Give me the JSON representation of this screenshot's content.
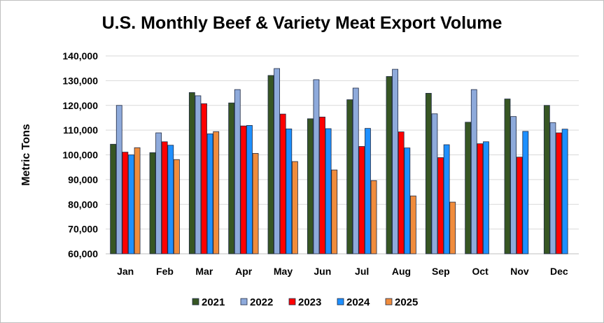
{
  "chart_data": {
    "type": "bar",
    "title": "U.S. Monthly Beef & Variety Meat Export Volume",
    "xlabel": "",
    "ylabel": "Metric Tons",
    "ylim": [
      60000,
      140000
    ],
    "yticks": [
      60000,
      70000,
      80000,
      90000,
      100000,
      110000,
      120000,
      130000,
      140000
    ],
    "ytick_labels": [
      "60,000",
      "70,000",
      "80,000",
      "90,000",
      "100,000",
      "110,000",
      "120,000",
      "130,000",
      "140,000"
    ],
    "grid": true,
    "legend_position": "bottom",
    "categories": [
      "Jan",
      "Feb",
      "Mar",
      "Apr",
      "May",
      "Jun",
      "Jul",
      "Aug",
      "Sep",
      "Oct",
      "Nov",
      "Dec"
    ],
    "series": [
      {
        "name": "2021",
        "color": "#375623",
        "values": [
          104300,
          100900,
          125200,
          121000,
          132100,
          114600,
          122300,
          131700,
          124900,
          113200,
          122600,
          120000
        ]
      },
      {
        "name": "2022",
        "color": "#8eaadb",
        "values": [
          120000,
          108900,
          123900,
          126400,
          134900,
          130400,
          127000,
          134600,
          116600,
          126400,
          115500,
          113000
        ]
      },
      {
        "name": "2023",
        "color": "#ff0000",
        "values": [
          101100,
          105300,
          120700,
          111700,
          116500,
          115300,
          103400,
          109300,
          98900,
          104500,
          99100,
          108900
        ]
      },
      {
        "name": "2024",
        "color": "#1e90ff",
        "values": [
          100000,
          103900,
          108500,
          111900,
          110500,
          110600,
          110700,
          102800,
          104100,
          105300,
          109500,
          110400
        ]
      },
      {
        "name": "2025",
        "color": "#f08c3c",
        "values": [
          102900,
          98100,
          109400,
          100600,
          97300,
          93900,
          89600,
          83400,
          80900,
          null,
          null,
          null
        ]
      }
    ]
  }
}
